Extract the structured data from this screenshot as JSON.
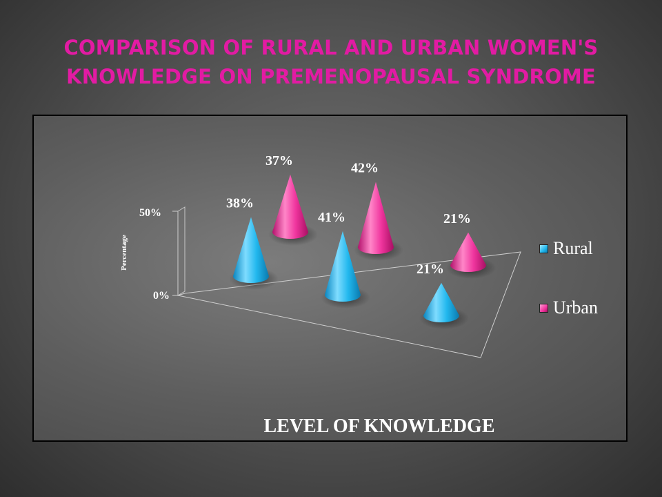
{
  "slide": {
    "title_lines": [
      "COMPARISON OF RURAL AND URBAN WOMEN'S",
      "KNOWLEDGE ON PREMENOPAUSAL SYNDROME"
    ],
    "title_color": "#e21ba3"
  },
  "chart_data": {
    "type": "bar",
    "shape": "cone-3d",
    "categories": [
      "",
      "",
      ""
    ],
    "series": [
      {
        "name": "Rural",
        "values": [
          38,
          41,
          21
        ],
        "labels": [
          "38%",
          "41%",
          "21%"
        ],
        "color": "#1fb6ec"
      },
      {
        "name": "Urban",
        "values": [
          37,
          42,
          21
        ],
        "labels": [
          "37%",
          "42%",
          "21%"
        ],
        "color": "#f0359e"
      }
    ],
    "xlabel": "LEVEL OF KNOWLEDGE",
    "ylabel": "Percentage",
    "ylim": [
      0,
      50
    ],
    "yticks": [
      "0%",
      "50%"
    ],
    "legend_position": "right",
    "grid": false
  }
}
